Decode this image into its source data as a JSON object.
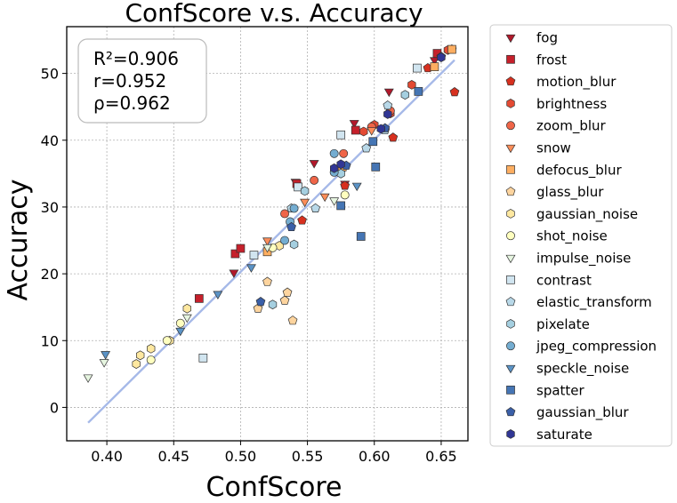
{
  "chart_data": {
    "type": "scatter",
    "title": "ConfScore  v.s.  Accuracy",
    "xlabel": "ConfScore",
    "ylabel": "Accuracy",
    "xlim": [
      0.37,
      0.67
    ],
    "ylim": [
      -5,
      57
    ],
    "xticks": [
      0.4,
      0.45,
      0.5,
      0.55,
      0.6,
      0.65
    ],
    "xtick_labels": [
      "0.40",
      "0.45",
      "0.50",
      "0.55",
      "0.60",
      "0.65"
    ],
    "yticks": [
      0,
      10,
      20,
      30,
      40,
      50
    ],
    "ytick_labels": [
      "0",
      "10",
      "20",
      "30",
      "40",
      "50"
    ],
    "grid": true,
    "legend_position": "outside-right",
    "stats": {
      "r2": "R²=0.906",
      "r": "r=0.952",
      "rho": "ρ=0.962"
    },
    "fit_line": {
      "x": [
        0.386,
        0.66
      ],
      "y": [
        -2.3,
        52.0
      ],
      "color": "#a6b9e8"
    },
    "series": [
      {
        "name": "fog",
        "marker": "triangle-down",
        "color": "#b2182b",
        "points": [
          [
            0.495,
            20.2
          ],
          [
            0.541,
            33.8
          ],
          [
            0.555,
            36.6
          ],
          [
            0.578,
            33.5
          ],
          [
            0.585,
            42.6
          ],
          [
            0.611,
            47.3
          ],
          [
            0.645,
            52.0
          ]
        ]
      },
      {
        "name": "frost",
        "marker": "square",
        "color": "#c6202b",
        "points": [
          [
            0.469,
            16.3
          ],
          [
            0.496,
            23.0
          ],
          [
            0.5,
            23.8
          ],
          [
            0.542,
            33.5
          ],
          [
            0.586,
            41.5
          ],
          [
            0.647,
            53.0
          ]
        ]
      },
      {
        "name": "motion_blur",
        "marker": "pentagon",
        "color": "#d7301f",
        "points": [
          [
            0.546,
            28.0
          ],
          [
            0.578,
            33.2
          ],
          [
            0.614,
            40.4
          ],
          [
            0.64,
            50.8
          ],
          [
            0.66,
            47.2
          ],
          [
            0.658,
            53.6
          ]
        ]
      },
      {
        "name": "brightness",
        "marker": "hexagon",
        "color": "#e34a33",
        "points": [
          [
            0.592,
            41.3
          ],
          [
            0.6,
            42.3
          ],
          [
            0.612,
            44.0
          ],
          [
            0.628,
            48.3
          ],
          [
            0.655,
            53.5
          ]
        ]
      },
      {
        "name": "zoom_blur",
        "marker": "circle",
        "color": "#ef6548",
        "points": [
          [
            0.533,
            29.0
          ],
          [
            0.555,
            34.0
          ],
          [
            0.577,
            38.0
          ],
          [
            0.598,
            42.0
          ],
          [
            0.612,
            44.4
          ]
        ]
      },
      {
        "name": "snow",
        "marker": "triangle-down",
        "color": "#fc8d59",
        "points": [
          [
            0.52,
            25.0
          ],
          [
            0.548,
            30.8
          ],
          [
            0.563,
            31.6
          ],
          [
            0.576,
            36.3
          ],
          [
            0.598,
            41.5
          ]
        ]
      },
      {
        "name": "defocus_blur",
        "marker": "square",
        "color": "#fdae61",
        "points": [
          [
            0.52,
            23.3
          ],
          [
            0.576,
            36.0
          ],
          [
            0.645,
            51.0
          ],
          [
            0.658,
            53.6
          ]
        ]
      },
      {
        "name": "glass_blur",
        "marker": "pentagon",
        "color": "#fdd49e",
        "points": [
          [
            0.513,
            14.8
          ],
          [
            0.52,
            18.8
          ],
          [
            0.533,
            16.0
          ],
          [
            0.535,
            17.2
          ],
          [
            0.539,
            13.0
          ]
        ]
      },
      {
        "name": "gaussian_noise",
        "marker": "hexagon",
        "color": "#fee8a0",
        "points": [
          [
            0.422,
            6.5
          ],
          [
            0.425,
            7.8
          ],
          [
            0.433,
            8.8
          ],
          [
            0.447,
            10.0
          ],
          [
            0.46,
            14.8
          ],
          [
            0.529,
            24.2
          ]
        ]
      },
      {
        "name": "shot_noise",
        "marker": "circle",
        "color": "#ffffbf",
        "points": [
          [
            0.433,
            7.1
          ],
          [
            0.445,
            10.0
          ],
          [
            0.455,
            12.6
          ],
          [
            0.524,
            23.9
          ],
          [
            0.578,
            31.8
          ]
        ]
      },
      {
        "name": "impulse_noise",
        "marker": "triangle-down",
        "color": "#e6f5e0",
        "points": [
          [
            0.386,
            4.5
          ],
          [
            0.398,
            6.8
          ],
          [
            0.46,
            13.5
          ],
          [
            0.52,
            24.0
          ],
          [
            0.57,
            31.0
          ]
        ]
      },
      {
        "name": "contrast",
        "marker": "square",
        "color": "#d1e5f0",
        "points": [
          [
            0.472,
            7.4
          ],
          [
            0.51,
            22.8
          ],
          [
            0.543,
            33.0
          ],
          [
            0.575,
            40.8
          ],
          [
            0.632,
            50.8
          ]
        ]
      },
      {
        "name": "elastic_transform",
        "marker": "pentagon",
        "color": "#b8d8e8",
        "points": [
          [
            0.538,
            29.8
          ],
          [
            0.556,
            29.8
          ],
          [
            0.594,
            38.8
          ],
          [
            0.608,
            41.5
          ],
          [
            0.61,
            45.2
          ]
        ]
      },
      {
        "name": "pixelate",
        "marker": "hexagon",
        "color": "#a5cfe0",
        "points": [
          [
            0.524,
            15.4
          ],
          [
            0.54,
            24.4
          ],
          [
            0.548,
            32.4
          ],
          [
            0.575,
            35.0
          ],
          [
            0.623,
            46.8
          ]
        ]
      },
      {
        "name": "jpeg_compression",
        "marker": "circle",
        "color": "#74add1",
        "points": [
          [
            0.533,
            25.0
          ],
          [
            0.537,
            27.8
          ],
          [
            0.54,
            29.8
          ],
          [
            0.57,
            35.2
          ],
          [
            0.57,
            38.0
          ]
        ]
      },
      {
        "name": "speckle_noise",
        "marker": "triangle-down",
        "color": "#5b93c6",
        "points": [
          [
            0.399,
            8.0
          ],
          [
            0.455,
            11.5
          ],
          [
            0.483,
            17.0
          ],
          [
            0.508,
            21.0
          ],
          [
            0.587,
            33.2
          ]
        ]
      },
      {
        "name": "spatter",
        "marker": "square",
        "color": "#4575b4",
        "points": [
          [
            0.575,
            30.2
          ],
          [
            0.59,
            25.6
          ],
          [
            0.601,
            36.0
          ],
          [
            0.599,
            39.8
          ],
          [
            0.633,
            47.3
          ]
        ]
      },
      {
        "name": "gaussian_blur",
        "marker": "pentagon",
        "color": "#3a5fa8",
        "points": [
          [
            0.515,
            15.8
          ],
          [
            0.538,
            27.0
          ],
          [
            0.579,
            36.2
          ],
          [
            0.608,
            41.8
          ],
          [
            0.65,
            52.5
          ]
        ]
      },
      {
        "name": "saturate",
        "marker": "hexagon",
        "color": "#313695",
        "points": [
          [
            0.57,
            35.8
          ],
          [
            0.575,
            36.4
          ],
          [
            0.605,
            41.7
          ],
          [
            0.61,
            43.9
          ],
          [
            0.65,
            52.4
          ]
        ]
      }
    ]
  }
}
